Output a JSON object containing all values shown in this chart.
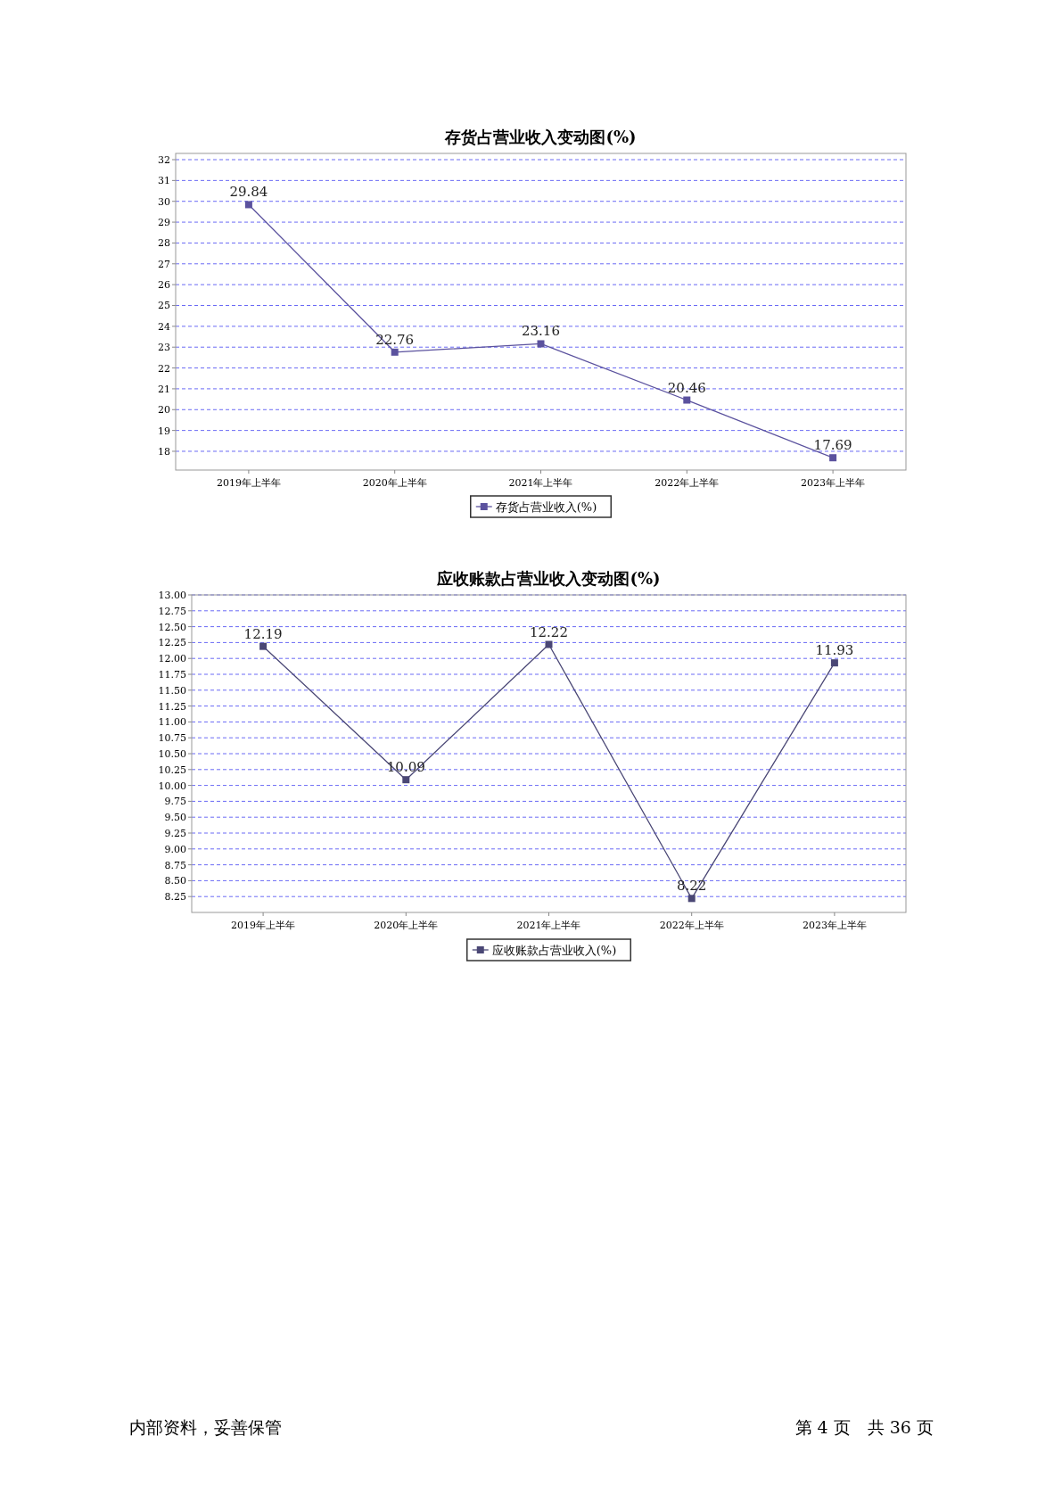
{
  "chart_data": [
    {
      "type": "line",
      "title": "存货占营业收入变动图(%)",
      "categories": [
        "2019年上半年",
        "2020年上半年",
        "2021年上半年",
        "2022年上半年",
        "2023年上半年"
      ],
      "series": [
        {
          "name": "存货占营业收入(%)",
          "color": "#5b529e",
          "values": [
            29.84,
            22.76,
            23.16,
            20.46,
            17.69
          ]
        }
      ],
      "ylim": [
        17.1,
        32.3
      ],
      "yticks": [
        18,
        19,
        20,
        21,
        22,
        23,
        24,
        25,
        26,
        27,
        28,
        29,
        30,
        31,
        32
      ],
      "grid": "y",
      "legend": "bottom",
      "marker": "square",
      "line_style": "solid",
      "data_labels": true
    },
    {
      "type": "line",
      "title": "应收账款占营业收入变动图(%)",
      "categories": [
        "2019年上半年",
        "2020年上半年",
        "2021年上半年",
        "2022年上半年",
        "2023年上半年"
      ],
      "series": [
        {
          "name": "应收账款占营业收入(%)",
          "color": "#4a4775",
          "values": [
            12.19,
            10.09,
            12.22,
            8.22,
            11.93
          ]
        }
      ],
      "ylim": [
        8.0,
        13.0
      ],
      "yticks": [
        {
          "value": 8.25,
          "label": "8.25"
        },
        {
          "value": 8.5,
          "label": "8.50"
        },
        {
          "value": 8.75,
          "label": "8.75"
        },
        {
          "value": 9,
          "label": "9.00"
        },
        {
          "value": 9.25,
          "label": "9.25"
        },
        {
          "value": 9.5,
          "label": "9.50"
        },
        {
          "value": 9.75,
          "label": "9.75"
        },
        {
          "value": 10,
          "label": "10.00"
        },
        {
          "value": 10.25,
          "label": "10.25"
        },
        {
          "value": 10.5,
          "label": "10.50"
        },
        {
          "value": 10.75,
          "label": "10.75"
        },
        {
          "value": 11,
          "label": "11.00"
        },
        {
          "value": 11.25,
          "label": "11.25"
        },
        {
          "value": 11.5,
          "label": "11.50"
        },
        {
          "value": 11.75,
          "label": "11.75"
        },
        {
          "value": 12,
          "label": "12.00"
        },
        {
          "value": 12.25,
          "label": "12.25"
        },
        {
          "value": 12.5,
          "label": "12.50"
        },
        {
          "value": 12.75,
          "label": "12.75"
        },
        {
          "value": 13,
          "label": "13.00"
        }
      ],
      "grid": "y",
      "legend": "bottom",
      "marker": "square",
      "line_style": "solid",
      "data_labels": true,
      "annotations": [
        "内部资料，妥善保管",
        "第 4 页　共 36 页"
      ]
    }
  ]
}
